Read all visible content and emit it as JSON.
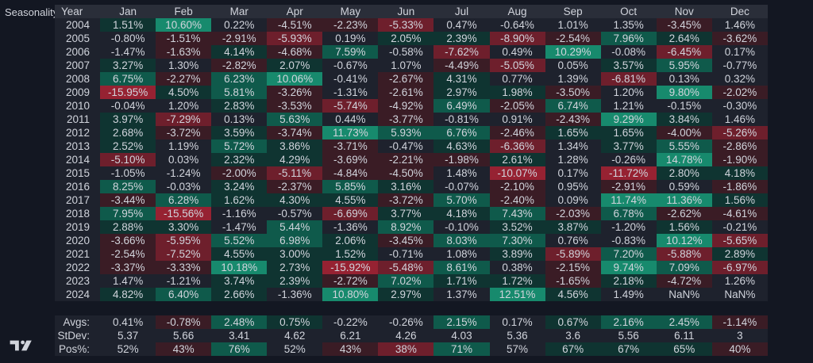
{
  "title": "Seasonality",
  "colors": {
    "background": "#131722",
    "header": "#2a2e39",
    "strong_positive": "#178a6d",
    "positive": "#0f5a4b",
    "mild_positive": "#0f3431",
    "neutral": "#1e222d",
    "mild_negative": "#3a1c25",
    "negative": "#6e1f2c",
    "strong_negative": "#962232"
  },
  "chart_data": {
    "type": "heatmap",
    "title": "Seasonality",
    "columns": [
      "Year",
      "Jan",
      "Feb",
      "Mar",
      "Apr",
      "May",
      "Jun",
      "Jul",
      "Aug",
      "Sep",
      "Oct",
      "Nov",
      "Dec"
    ],
    "rows": [
      {
        "year": "2004",
        "values": [
          "1.51%",
          "10.60%",
          "0.22%",
          "-4.51%",
          "-2.23%",
          "-5.33%",
          "0.47%",
          "-0.64%",
          "1.01%",
          "1.35%",
          "-3.45%",
          "1.46%"
        ]
      },
      {
        "year": "2005",
        "values": [
          "-0.80%",
          "-1.51%",
          "-2.91%",
          "-5.93%",
          "0.19%",
          "2.05%",
          "2.39%",
          "-8.90%",
          "-2.54%",
          "7.96%",
          "2.64%",
          "-3.62%"
        ]
      },
      {
        "year": "2006",
        "values": [
          "-1.47%",
          "-1.63%",
          "4.14%",
          "-4.68%",
          "7.59%",
          "-0.58%",
          "-7.62%",
          "0.49%",
          "10.29%",
          "-0.08%",
          "-6.45%",
          "0.17%"
        ]
      },
      {
        "year": "2007",
        "values": [
          "3.27%",
          "1.30%",
          "-2.82%",
          "2.07%",
          "-0.67%",
          "1.07%",
          "-4.49%",
          "-5.05%",
          "0.05%",
          "3.57%",
          "5.95%",
          "-0.77%"
        ]
      },
      {
        "year": "2008",
        "values": [
          "6.75%",
          "-2.27%",
          "6.23%",
          "10.06%",
          "-0.41%",
          "-2.67%",
          "4.31%",
          "0.77%",
          "1.39%",
          "-6.81%",
          "0.13%",
          "0.32%"
        ]
      },
      {
        "year": "2009",
        "values": [
          "-15.95%",
          "4.50%",
          "5.81%",
          "-3.26%",
          "-1.31%",
          "-2.61%",
          "2.97%",
          "1.98%",
          "-3.50%",
          "1.20%",
          "9.80%",
          "-2.02%"
        ]
      },
      {
        "year": "2010",
        "values": [
          "-0.04%",
          "1.20%",
          "2.83%",
          "-3.53%",
          "-5.74%",
          "-4.92%",
          "6.49%",
          "-2.05%",
          "6.74%",
          "1.21%",
          "-0.15%",
          "-0.30%"
        ]
      },
      {
        "year": "2011",
        "values": [
          "3.97%",
          "-7.29%",
          "0.13%",
          "5.63%",
          "0.44%",
          "-3.77%",
          "-0.81%",
          "0.91%",
          "-2.43%",
          "9.29%",
          "3.84%",
          "1.46%"
        ]
      },
      {
        "year": "2012",
        "values": [
          "2.68%",
          "-3.72%",
          "3.59%",
          "-3.74%",
          "11.73%",
          "5.93%",
          "6.76%",
          "-2.46%",
          "1.65%",
          "1.65%",
          "-4.00%",
          "-5.26%"
        ]
      },
      {
        "year": "2013",
        "values": [
          "2.52%",
          "1.19%",
          "5.72%",
          "3.86%",
          "-3.71%",
          "-0.47%",
          "4.63%",
          "-6.36%",
          "1.34%",
          "3.77%",
          "5.55%",
          "-2.86%"
        ]
      },
      {
        "year": "2014",
        "values": [
          "-5.10%",
          "0.03%",
          "2.32%",
          "4.29%",
          "-3.69%",
          "-2.21%",
          "-1.98%",
          "2.61%",
          "1.28%",
          "-0.26%",
          "14.78%",
          "-1.90%"
        ]
      },
      {
        "year": "2015",
        "values": [
          "-1.05%",
          "-1.24%",
          "-2.00%",
          "-5.11%",
          "-4.84%",
          "-4.50%",
          "1.48%",
          "-10.07%",
          "0.17%",
          "-11.72%",
          "2.80%",
          "4.18%"
        ]
      },
      {
        "year": "2016",
        "values": [
          "8.25%",
          "-0.03%",
          "3.24%",
          "-2.37%",
          "5.85%",
          "3.16%",
          "-0.07%",
          "-2.10%",
          "0.95%",
          "-2.91%",
          "0.59%",
          "-1.86%"
        ]
      },
      {
        "year": "2017",
        "values": [
          "-3.44%",
          "6.28%",
          "1.62%",
          "4.30%",
          "4.55%",
          "-3.72%",
          "5.70%",
          "-2.40%",
          "0.09%",
          "11.74%",
          "11.36%",
          "1.56%"
        ]
      },
      {
        "year": "2018",
        "values": [
          "7.95%",
          "-15.56%",
          "-1.16%",
          "-0.57%",
          "-6.69%",
          "3.77%",
          "4.18%",
          "7.43%",
          "-2.03%",
          "6.78%",
          "-2.62%",
          "-4.61%"
        ]
      },
      {
        "year": "2019",
        "values": [
          "2.88%",
          "3.30%",
          "-1.47%",
          "5.44%",
          "-1.36%",
          "8.92%",
          "-0.10%",
          "3.52%",
          "3.87%",
          "-1.20%",
          "1.56%",
          "-0.21%"
        ]
      },
      {
        "year": "2020",
        "values": [
          "-3.66%",
          "-5.95%",
          "5.52%",
          "6.98%",
          "2.06%",
          "-3.45%",
          "8.03%",
          "7.30%",
          "0.76%",
          "-0.83%",
          "10.12%",
          "-5.65%"
        ]
      },
      {
        "year": "2021",
        "values": [
          "-2.54%",
          "-7.52%",
          "4.55%",
          "3.00%",
          "1.52%",
          "-0.71%",
          "1.08%",
          "3.89%",
          "-5.89%",
          "7.20%",
          "-5.88%",
          "2.89%"
        ]
      },
      {
        "year": "2022",
        "values": [
          "-3.37%",
          "-3.33%",
          "10.18%",
          "2.73%",
          "-15.92%",
          "-5.48%",
          "8.61%",
          "0.38%",
          "-2.15%",
          "9.74%",
          "7.09%",
          "-6.97%"
        ]
      },
      {
        "year": "2023",
        "values": [
          "1.47%",
          "-1.21%",
          "3.74%",
          "2.39%",
          "-2.72%",
          "7.02%",
          "1.71%",
          "1.72%",
          "-1.65%",
          "2.18%",
          "-4.72%",
          "1.26%"
        ]
      },
      {
        "year": "2024",
        "values": [
          "4.82%",
          "6.40%",
          "2.66%",
          "-1.36%",
          "10.80%",
          "2.97%",
          "1.37%",
          "12.51%",
          "4.56%",
          "1.49%",
          "NaN%",
          "NaN%"
        ]
      }
    ],
    "stats": [
      {
        "label": "Avgs:",
        "values": [
          "0.41%",
          "-0.78%",
          "2.48%",
          "0.75%",
          "-0.22%",
          "-0.26%",
          "2.15%",
          "0.17%",
          "0.67%",
          "2.16%",
          "2.45%",
          "-1.14%"
        ]
      },
      {
        "label": "StDev:",
        "values": [
          "5.37",
          "5.66",
          "3.41",
          "4.62",
          "6.21",
          "4.26",
          "4.03",
          "5.36",
          "3.6",
          "5.56",
          "6.11",
          "3"
        ]
      },
      {
        "label": "Pos%:",
        "values": [
          "52%",
          "43%",
          "76%",
          "52%",
          "43%",
          "38%",
          "71%",
          "57%",
          "67%",
          "67%",
          "65%",
          "40%"
        ]
      }
    ]
  }
}
